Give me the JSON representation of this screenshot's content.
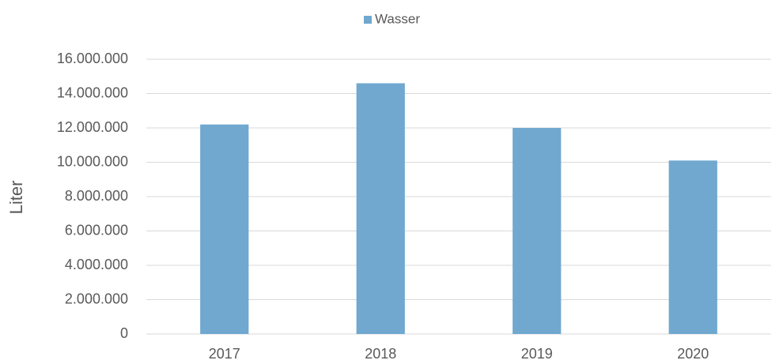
{
  "chart_data": {
    "type": "bar",
    "y_label": "Liter",
    "categories": [
      "2017",
      "2018",
      "2019",
      "2020"
    ],
    "series": [
      {
        "name": "Wasser",
        "color": "#70a8cf",
        "values": [
          12200000,
          14600000,
          12000000,
          10100000
        ]
      }
    ],
    "ylim": [
      0,
      16000000
    ],
    "yticks": [
      0,
      {
        "value": 2000000,
        "label": "2.000.000"
      },
      {
        "value": 4000000,
        "label": "4.000.000"
      },
      {
        "value": 6000000,
        "label": "6.000.000"
      },
      {
        "value": 8000000,
        "label": "8.000.000"
      },
      {
        "value": 10000000,
        "label": "10.000.000"
      },
      {
        "value": 12000000,
        "label": "12.000.000"
      },
      {
        "value": 14000000,
        "label": "14.000.000"
      },
      {
        "value": 16000000,
        "label": "16.000.000"
      }
    ],
    "grid": true,
    "legend": "top"
  }
}
